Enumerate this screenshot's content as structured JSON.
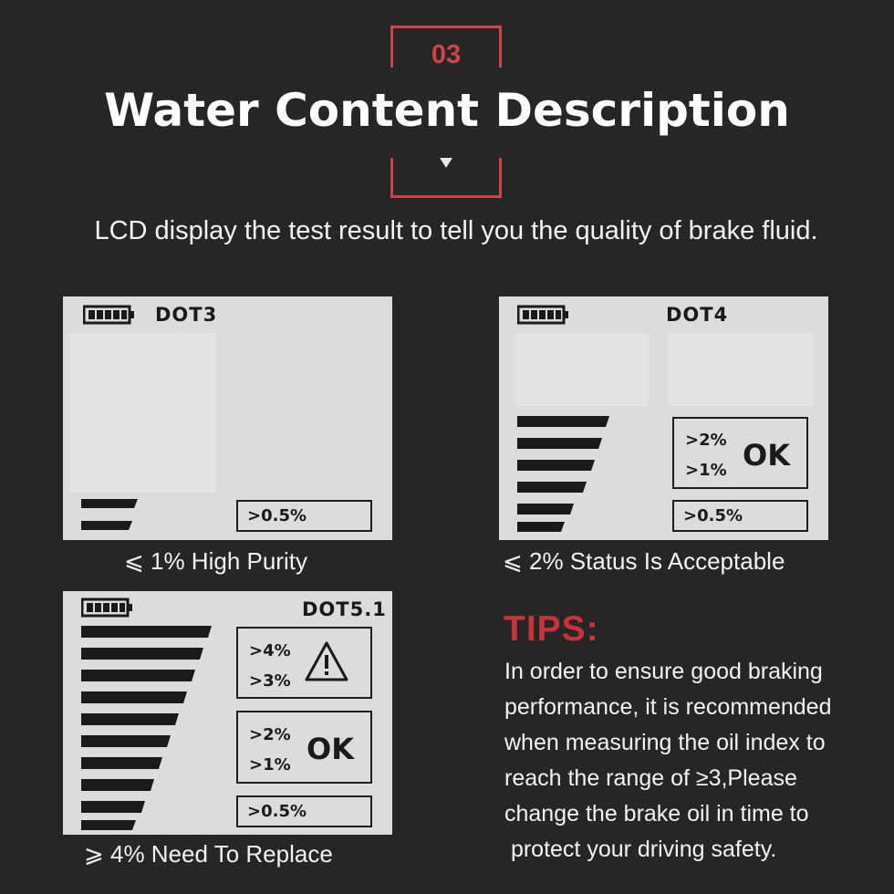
{
  "header": {
    "number": "03",
    "title": "Water Content Description",
    "subtitle": "LCD display the test result to tell you the quality of brake fluid."
  },
  "panels": [
    {
      "dot": "DOT3",
      "bar_levels": 2,
      "boxes": [
        {
          "type": "single",
          "label": ">0.5%"
        }
      ],
      "caption": "⩽ 1% High Purity"
    },
    {
      "dot": "DOT4",
      "bar_levels": 5,
      "boxes": [
        {
          "type": "pair",
          "top": ">2%",
          "bottom": ">1%",
          "symbol": "OK"
        },
        {
          "type": "single",
          "label": ">0.5%"
        }
      ],
      "caption": "⩽ 2% Status Is Acceptable"
    },
    {
      "dot": "DOT5.1",
      "bar_levels": 10,
      "boxes": [
        {
          "type": "pair",
          "top": ">4%",
          "bottom": ">3%",
          "symbol": "!"
        },
        {
          "type": "pair",
          "top": ">2%",
          "bottom": ">1%",
          "symbol": "OK"
        },
        {
          "type": "single",
          "label": ">0.5%"
        }
      ],
      "caption": "⩾ 4% Need To Replace"
    }
  ],
  "tips": {
    "title": "TIPS:",
    "lines": [
      "In order to ensure good braking",
      "performance, it is recommended",
      "when measuring the oil index to",
      "reach the range of ≥3,Please",
      "change the brake oil in time to",
      " protect your driving safety."
    ]
  },
  "colors": {
    "background": "#262626",
    "accent": "#d0424a",
    "lcd": "#dcdcdc",
    "lcd_ink": "#1a1a1a"
  }
}
